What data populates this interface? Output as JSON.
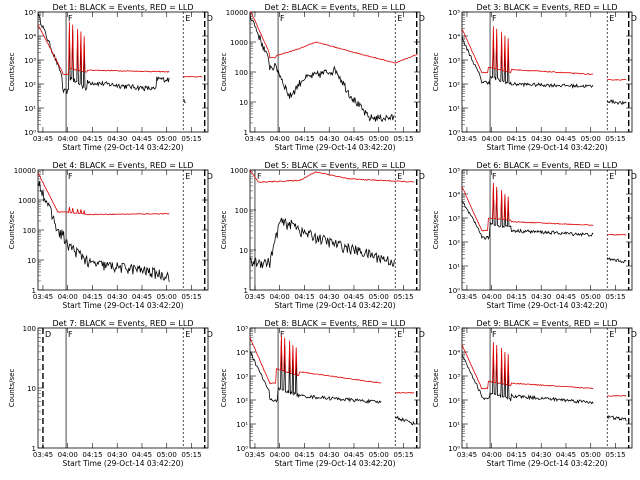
{
  "figure": {
    "background": "#ffffff",
    "line_color_events": "#000000",
    "line_color_lld": "#dd0000"
  },
  "common": {
    "xlabel": "Start Time (29-Oct-14 03:42:20)",
    "ylabel": "Counts/sec",
    "x_tick_labels": [
      "03:45",
      "04:00",
      "04:15",
      "04:30",
      "04:45",
      "05:00",
      "05:15"
    ],
    "x_tick_minutes": [
      3,
      18,
      33,
      48,
      63,
      78,
      93
    ],
    "xlim_minutes": [
      0,
      103
    ]
  },
  "chart_data": [
    {
      "type": "line",
      "title": "Det 1: BLACK = Events, RED = LLD",
      "xlabel": "Start Time (29-Oct-14 03:42:20)",
      "ylabel": "Counts/sec",
      "y_log": true,
      "ylim": [
        1,
        100000
      ],
      "y_tick_format": "pow",
      "markers": [
        {
          "x": 17,
          "label": "F"
        },
        {
          "x": 88,
          "label": "E"
        },
        {
          "x": 101,
          "label": "D"
        }
      ],
      "series": [
        {
          "name": "Events",
          "color": "#000000",
          "mode": "bursty",
          "start": 80000,
          "base": 180,
          "noise": 0.12,
          "dip": [
            15,
            19,
            50
          ],
          "segments": [
            [
              16,
              30,
              250,
              60
            ],
            [
              30,
              72,
              120,
              60
            ],
            [
              72,
              80,
              170,
              150
            ],
            [
              88,
              90,
              22,
              20
            ]
          ],
          "spikes": [
            [
              19,
              20000
            ],
            [
              21,
              20000
            ],
            [
              24,
              12000
            ],
            [
              26,
              8000
            ],
            [
              28,
              6000
            ]
          ]
        },
        {
          "name": "LLD",
          "color": "#dd0000",
          "mode": "smooth",
          "start": 30000,
          "base": 300,
          "noise": 0.04,
          "dip": [
            15,
            19,
            250
          ],
          "segments": [
            [
              16,
              30,
              500,
              300
            ],
            [
              30,
              80,
              380,
              320
            ],
            [
              88,
              100,
              200,
              200
            ]
          ],
          "spikes": [
            [
              19,
              40000
            ],
            [
              21,
              30000
            ],
            [
              24,
              20000
            ],
            [
              26,
              15000
            ],
            [
              28,
              10000
            ]
          ]
        }
      ]
    },
    {
      "type": "line",
      "title": "Det 2: BLACK = Events, RED = LLD",
      "xlabel": "Start Time (29-Oct-14 03:42:20)",
      "ylabel": "Counts/sec",
      "y_log": true,
      "ylim": [
        1,
        10000
      ],
      "y_tick_format": "plain",
      "markers": [
        {
          "x": 17,
          "label": "F"
        },
        {
          "x": 88,
          "label": "E"
        },
        {
          "x": 101,
          "label": "D"
        }
      ],
      "series": [
        {
          "name": "Events",
          "color": "#000000",
          "mode": "bursty",
          "start": 9000,
          "base": 200,
          "noise": 0.15,
          "dip": [
            12,
            16,
            150
          ],
          "segments": [
            [
              16,
              24,
              150,
              15
            ],
            [
              24,
              32,
              15,
              60
            ],
            [
              32,
              52,
              60,
              120
            ],
            [
              52,
              60,
              120,
              20
            ],
            [
              60,
              72,
              20,
              3
            ],
            [
              72,
              88,
              3,
              3
            ]
          ],
          "spikes": []
        },
        {
          "name": "LLD",
          "color": "#dd0000",
          "mode": "smooth",
          "start": 12000,
          "base": 400,
          "noise": 0.03,
          "dip": [
            12,
            16,
            300
          ],
          "segments": [
            [
              16,
              30,
              350,
              600
            ],
            [
              30,
              40,
              600,
              1000
            ],
            [
              40,
              60,
              1000,
              500
            ],
            [
              60,
              88,
              500,
              200
            ],
            [
              88,
              102,
              200,
              400
            ]
          ],
          "spikes": []
        }
      ]
    },
    {
      "type": "line",
      "title": "Det 3: BLACK = Events, RED = LLD",
      "xlabel": "Start Time (29-Oct-14 03:42:20)",
      "ylabel": "Counts/sec",
      "y_log": true,
      "ylim": [
        1,
        100000
      ],
      "y_tick_format": "pow",
      "markers": [
        {
          "x": 17,
          "label": "F"
        },
        {
          "x": 88,
          "label": "E"
        },
        {
          "x": 101,
          "label": "D"
        }
      ],
      "series": [
        {
          "name": "Events",
          "color": "#000000",
          "mode": "bursty",
          "start": 8000,
          "base": 150,
          "noise": 0.08,
          "dip": [
            12,
            17,
            120
          ],
          "segments": [
            [
              16,
              30,
              200,
              100
            ],
            [
              30,
              80,
              100,
              80
            ],
            [
              88,
              100,
              20,
              15
            ]
          ],
          "spikes": [
            [
              19,
              10000
            ],
            [
              21,
              8000
            ],
            [
              24,
              5000
            ],
            [
              26,
              4000
            ],
            [
              28,
              3000
            ]
          ]
        },
        {
          "name": "LLD",
          "color": "#dd0000",
          "mode": "smooth",
          "start": 20000,
          "base": 300,
          "noise": 0.04,
          "dip": [
            12,
            16,
            300
          ],
          "segments": [
            [
              16,
              30,
              500,
              300
            ],
            [
              30,
              80,
              400,
              250
            ],
            [
              88,
              100,
              150,
              150
            ]
          ],
          "spikes": [
            [
              19,
              25000
            ],
            [
              21,
              20000
            ],
            [
              24,
              15000
            ],
            [
              26,
              10000
            ],
            [
              28,
              8000
            ]
          ]
        }
      ]
    },
    {
      "type": "line",
      "title": "Det 4: BLACK = Events, RED = LLD",
      "xlabel": "Start Time (29-Oct-14 03:42:20)",
      "ylabel": "Counts/sec",
      "y_log": true,
      "ylim": [
        1,
        10000
      ],
      "y_tick_format": "plain",
      "markers": [
        {
          "x": 17,
          "label": "F"
        },
        {
          "x": 88,
          "label": "E"
        },
        {
          "x": 101,
          "label": "D"
        }
      ],
      "series": [
        {
          "name": "Events",
          "color": "#000000",
          "mode": "bursty",
          "start": 5000,
          "base": 100,
          "noise": 0.2,
          "dip": [
            12,
            16,
            80
          ],
          "segments": [
            [
              16,
              30,
              40,
              10
            ],
            [
              30,
              60,
              8,
              5
            ],
            [
              60,
              80,
              5,
              3
            ]
          ],
          "spikes": []
        },
        {
          "name": "LLD",
          "color": "#dd0000",
          "mode": "smooth",
          "start": 8000,
          "base": 400,
          "noise": 0.03,
          "dip": [
            12,
            16,
            400
          ],
          "segments": [
            [
              16,
              30,
              400,
              330
            ],
            [
              30,
              80,
              330,
              350
            ]
          ],
          "spikes": [
            [
              19,
              600
            ],
            [
              21,
              550
            ],
            [
              24,
              500
            ],
            [
              26,
              480
            ],
            [
              28,
              450
            ]
          ]
        }
      ]
    },
    {
      "type": "line",
      "title": "Det 5: BLACK = Events, RED = LLD",
      "xlabel": "Start Time (29-Oct-14 03:42:20)",
      "ylabel": "Counts/sec",
      "y_log": true,
      "ylim": [
        1,
        1000
      ],
      "y_tick_format": "plain",
      "markers": [
        {
          "x": 3,
          "label": "F"
        },
        {
          "x": 88,
          "label": "E"
        },
        {
          "x": 101,
          "label": "D"
        }
      ],
      "series": [
        {
          "name": "Events",
          "color": "#000000",
          "mode": "bursty",
          "start": 5,
          "base": 5,
          "noise": 0.15,
          "dip": [
            10,
            12,
            5
          ],
          "segments": [
            [
              12,
              18,
              5,
              50
            ],
            [
              18,
              30,
              50,
              40
            ],
            [
              30,
              50,
              30,
              15
            ],
            [
              50,
              88,
              15,
              5
            ]
          ],
          "spikes": []
        },
        {
          "name": "LLD",
          "color": "#dd0000",
          "mode": "smooth",
          "start": 1000,
          "base": 500,
          "noise": 0.03,
          "dip": [
            5,
            8,
            500
          ],
          "segments": [
            [
              8,
              30,
              500,
              550
            ],
            [
              30,
              40,
              550,
              900
            ],
            [
              40,
              60,
              900,
              600
            ],
            [
              60,
              100,
              600,
              500
            ]
          ],
          "spikes": []
        }
      ]
    },
    {
      "type": "line",
      "title": "Det 6: BLACK = Events, RED = LLD",
      "xlabel": "Start Time (29-Oct-14 03:42:20)",
      "ylabel": "Counts/sec",
      "y_log": true,
      "ylim": [
        1,
        100000
      ],
      "y_tick_format": "pow",
      "markers": [
        {
          "x": 17,
          "label": "F"
        },
        {
          "x": 88,
          "label": "E"
        },
        {
          "x": 101,
          "label": "D"
        }
      ],
      "series": [
        {
          "name": "Events",
          "color": "#000000",
          "mode": "bursty",
          "start": 5000,
          "base": 200,
          "noise": 0.08,
          "dip": [
            12,
            17,
            150
          ],
          "segments": [
            [
              16,
              30,
              600,
              400
            ],
            [
              30,
              80,
              300,
              200
            ],
            [
              88,
              100,
              20,
              15
            ]
          ],
          "spikes": [
            [
              19,
              20000
            ],
            [
              21,
              15000
            ],
            [
              24,
              10000
            ],
            [
              26,
              8000
            ],
            [
              28,
              6000
            ]
          ]
        },
        {
          "name": "LLD",
          "color": "#dd0000",
          "mode": "smooth",
          "start": 20000,
          "base": 300,
          "noise": 0.04,
          "dip": [
            12,
            16,
            300
          ],
          "segments": [
            [
              16,
              30,
              1000,
              800
            ],
            [
              30,
              80,
              700,
              500
            ],
            [
              88,
              100,
              200,
              200
            ]
          ],
          "spikes": [
            [
              19,
              30000
            ],
            [
              21,
              20000
            ],
            [
              24,
              15000
            ],
            [
              26,
              10000
            ],
            [
              28,
              8000
            ]
          ]
        }
      ]
    },
    {
      "type": "line",
      "title": "Det 7: BLACK = Events, RED = LLD",
      "xlabel": "Start Time (29-Oct-14 03:42:20)",
      "ylabel": "Counts/sec",
      "y_log": true,
      "ylim": [
        1,
        100
      ],
      "y_tick_format": "plain",
      "markers": [
        {
          "x": 3,
          "label": "D"
        },
        {
          "x": 17,
          "label": "F"
        },
        {
          "x": 88,
          "label": "E"
        },
        {
          "x": 101,
          "label": "D"
        }
      ],
      "series": []
    },
    {
      "type": "line",
      "title": "Det 8: BLACK = Events, RED = LLD",
      "xlabel": "Start Time (29-Oct-14 03:42:20)",
      "ylabel": "Counts/sec",
      "y_log": true,
      "ylim": [
        1,
        100000
      ],
      "y_tick_format": "pow",
      "markers": [
        {
          "x": 17,
          "label": "F"
        },
        {
          "x": 88,
          "label": "E"
        },
        {
          "x": 101,
          "label": "D"
        }
      ],
      "series": [
        {
          "name": "Events",
          "color": "#000000",
          "mode": "bursty",
          "start": 10000,
          "base": 200,
          "noise": 0.08,
          "dip": [
            12,
            17,
            100
          ],
          "segments": [
            [
              16,
              30,
              300,
              150
            ],
            [
              30,
              80,
              150,
              80
            ],
            [
              88,
              100,
              20,
              10
            ]
          ],
          "spikes": [
            [
              19,
              30000
            ],
            [
              21,
              20000
            ],
            [
              24,
              15000
            ],
            [
              26,
              10000
            ],
            [
              28,
              8000
            ]
          ]
        },
        {
          "name": "LLD",
          "color": "#dd0000",
          "mode": "smooth",
          "start": 40000,
          "base": 500,
          "noise": 0.04,
          "dip": [
            12,
            16,
            500
          ],
          "segments": [
            [
              16,
              30,
              2000,
              1000
            ],
            [
              30,
              80,
              1500,
              500
            ],
            [
              88,
              100,
              200,
              200
            ]
          ],
          "spikes": [
            [
              19,
              50000
            ],
            [
              21,
              40000
            ],
            [
              24,
              30000
            ],
            [
              26,
              20000
            ],
            [
              28,
              15000
            ]
          ]
        }
      ]
    },
    {
      "type": "line",
      "title": "Det 9: BLACK = Events, RED = LLD",
      "xlabel": "Start Time (29-Oct-14 03:42:20)",
      "ylabel": "Counts/sec",
      "y_log": true,
      "ylim": [
        1,
        100000
      ],
      "y_tick_format": "pow",
      "markers": [
        {
          "x": 17,
          "label": "F"
        },
        {
          "x": 88,
          "label": "E"
        },
        {
          "x": 101,
          "label": "D"
        }
      ],
      "series": [
        {
          "name": "Events",
          "color": "#000000",
          "mode": "bursty",
          "start": 8000,
          "base": 150,
          "noise": 0.08,
          "dip": [
            12,
            17,
            120
          ],
          "segments": [
            [
              16,
              30,
              200,
              100
            ],
            [
              30,
              80,
              150,
              80
            ],
            [
              88,
              100,
              20,
              15
            ]
          ],
          "spikes": [
            [
              19,
              10000
            ],
            [
              21,
              8000
            ],
            [
              24,
              5000
            ],
            [
              26,
              4000
            ],
            [
              28,
              3000
            ]
          ]
        },
        {
          "name": "LLD",
          "color": "#dd0000",
          "mode": "smooth",
          "start": 20000,
          "base": 300,
          "noise": 0.04,
          "dip": [
            12,
            16,
            300
          ],
          "segments": [
            [
              16,
              30,
              600,
              400
            ],
            [
              30,
              80,
              500,
              300
            ],
            [
              88,
              100,
              150,
              150
            ]
          ],
          "spikes": [
            [
              19,
              25000
            ],
            [
              21,
              20000
            ],
            [
              24,
              15000
            ],
            [
              26,
              10000
            ],
            [
              28,
              8000
            ]
          ]
        }
      ]
    }
  ]
}
